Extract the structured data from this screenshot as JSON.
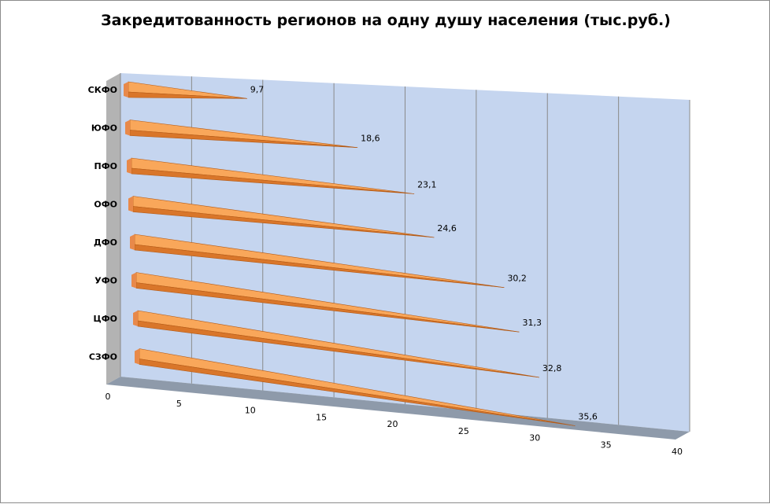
{
  "chart_data": {
    "type": "bar",
    "orientation": "horizontal",
    "style": "3d-cone",
    "title": "Закредитованность регионов на одну душу населения (тыс.руб.)",
    "categories": [
      "СКФО",
      "ЮФО",
      "ПФО",
      "ОФО",
      "ДФО",
      "УФО",
      "ЦФО",
      "СЗФО"
    ],
    "values": [
      9.7,
      18.6,
      23.1,
      24.6,
      30.2,
      31.3,
      32.8,
      35.6
    ],
    "value_labels": [
      "9,7",
      "18,6",
      "23,1",
      "24,6",
      "30,2",
      "31,3",
      "32,8",
      "35,6"
    ],
    "xlim": [
      0,
      40
    ],
    "xticks": [
      "0",
      "5",
      "10",
      "15",
      "20",
      "25",
      "30",
      "35",
      "40"
    ],
    "xlabel": "",
    "ylabel": "",
    "grid": true,
    "legend": "none",
    "colors": {
      "bar_top": "#f9a75a",
      "bar_side": "#d9762a",
      "back_wall": "#c5d5ef",
      "side_wall": "#b3b3b3",
      "floor": "#8e9aaa",
      "grid": "#8a8a8a"
    }
  }
}
